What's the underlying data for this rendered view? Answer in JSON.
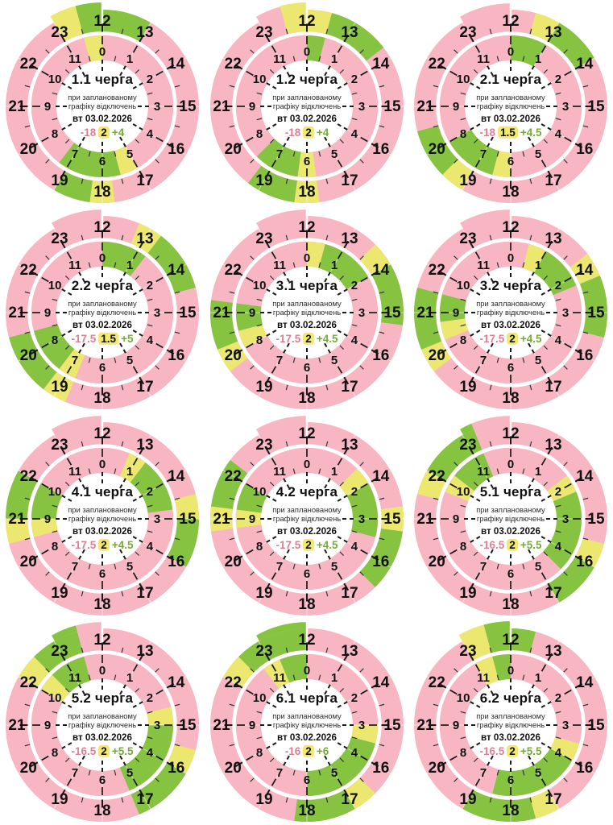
{
  "chart_data": {
    "type": "radial-clock-schedule",
    "description_line1": "при запланованому",
    "description_line2": "графіку відключень",
    "date": "вт 03.02.2026",
    "inner_ring_hour_labels": [
      "0",
      "1",
      "2",
      "3",
      "4",
      "5",
      "6",
      "7",
      "8",
      "9",
      "10",
      "11"
    ],
    "outer_ring_hour_labels": [
      "12",
      "13",
      "14",
      "15",
      "16",
      "17",
      "18",
      "19",
      "20",
      "21",
      "22",
      "23"
    ],
    "colors": {
      "off": "#f8b6c3",
      "maybe": "#ece86f",
      "on": "#85c341",
      "number_off": "#df7f97",
      "number_maybe_bg": "#f2e96d",
      "number_maybe_text": "#111111",
      "number_on": "#78a83c",
      "label": "#111111",
      "tick": "#1a1a1a"
    },
    "charts": [
      {
        "title": "1.1 черга",
        "off": "-18",
        "maybe": "2",
        "on": "+4",
        "segments": [
          {
            "from": 5,
            "to": 5.5,
            "state": "maybe"
          },
          {
            "from": 5.5,
            "to": 7.25,
            "state": "on"
          },
          {
            "from": 11.5,
            "to": 12,
            "state": "maybe"
          },
          {
            "from": 12,
            "to": 13,
            "state": "on"
          },
          {
            "from": 17.75,
            "to": 18.25,
            "state": "maybe"
          },
          {
            "from": 18.25,
            "to": 19,
            "state": "on"
          },
          {
            "from": 23,
            "to": 23.5,
            "state": "maybe"
          },
          {
            "from": 23.5,
            "to": 24,
            "state": "on"
          }
        ]
      },
      {
        "title": "1.2 черга",
        "off": "-18",
        "maybe": "2",
        "on": "+4",
        "segments": [
          {
            "from": 0,
            "to": 0.5,
            "state": "on"
          },
          {
            "from": 5.75,
            "to": 6.25,
            "state": "maybe"
          },
          {
            "from": 6.25,
            "to": 7.5,
            "state": "on"
          },
          {
            "from": 12,
            "to": 12.5,
            "state": "maybe"
          },
          {
            "from": 12.5,
            "to": 13.75,
            "state": "on"
          },
          {
            "from": 17.75,
            "to": 18.25,
            "state": "maybe"
          },
          {
            "from": 18.25,
            "to": 19.25,
            "state": "on"
          },
          {
            "from": 23.5,
            "to": 24,
            "state": "maybe"
          }
        ]
      },
      {
        "title": "2.1 черга",
        "off": "-18",
        "maybe": "1.5",
        "on": "+4.5",
        "segments": [
          {
            "from": 0,
            "to": 1,
            "state": "on"
          },
          {
            "from": 6,
            "to": 6.5,
            "state": "maybe"
          },
          {
            "from": 6.5,
            "to": 8,
            "state": "on"
          },
          {
            "from": 12.5,
            "to": 13,
            "state": "maybe"
          },
          {
            "from": 13,
            "to": 14,
            "state": "on"
          },
          {
            "from": 19,
            "to": 19.5,
            "state": "maybe"
          },
          {
            "from": 19.5,
            "to": 20.5,
            "state": "on"
          }
        ]
      },
      {
        "title": "2.2 черга",
        "off": "-17.5",
        "maybe": "1.5",
        "on": "+5",
        "segments": [
          {
            "from": 0,
            "to": 1.25,
            "state": "on"
          },
          {
            "from": 6.75,
            "to": 7.25,
            "state": "maybe"
          },
          {
            "from": 7.25,
            "to": 8.5,
            "state": "on"
          },
          {
            "from": 12.75,
            "to": 13.25,
            "state": "maybe"
          },
          {
            "from": 13.25,
            "to": 14.5,
            "state": "on"
          },
          {
            "from": 18.75,
            "to": 19.25,
            "state": "maybe"
          },
          {
            "from": 19.25,
            "to": 20.5,
            "state": "on"
          }
        ]
      },
      {
        "title": "3.1 черга",
        "off": "-17.5",
        "maybe": "2",
        "on": "+4.5",
        "segments": [
          {
            "from": 0,
            "to": 0.5,
            "state": "maybe"
          },
          {
            "from": 0.5,
            "to": 2,
            "state": "on"
          },
          {
            "from": 8,
            "to": 8.5,
            "state": "maybe"
          },
          {
            "from": 8.5,
            "to": 9.25,
            "state": "on"
          },
          {
            "from": 13.5,
            "to": 14,
            "state": "maybe"
          },
          {
            "from": 14,
            "to": 15.25,
            "state": "on"
          },
          {
            "from": 19.75,
            "to": 20.25,
            "state": "maybe"
          },
          {
            "from": 20.25,
            "to": 21.25,
            "state": "on"
          }
        ]
      },
      {
        "title": "3.2 черга",
        "off": "-17.5",
        "maybe": "2",
        "on": "+4.5",
        "segments": [
          {
            "from": 0.5,
            "to": 1,
            "state": "maybe"
          },
          {
            "from": 1,
            "to": 2.25,
            "state": "on"
          },
          {
            "from": 8.25,
            "to": 8.75,
            "state": "maybe"
          },
          {
            "from": 8.75,
            "to": 9.5,
            "state": "on"
          },
          {
            "from": 13.75,
            "to": 14.25,
            "state": "maybe"
          },
          {
            "from": 14.25,
            "to": 15.5,
            "state": "on"
          },
          {
            "from": 19.75,
            "to": 20.25,
            "state": "maybe"
          },
          {
            "from": 20.25,
            "to": 21.5,
            "state": "on"
          }
        ]
      },
      {
        "title": "4.1 черга",
        "off": "-17.5",
        "maybe": "2",
        "on": "+4.5",
        "segments": [
          {
            "from": 0.75,
            "to": 1.25,
            "state": "maybe"
          },
          {
            "from": 1.25,
            "to": 2.75,
            "state": "on"
          },
          {
            "from": 8.5,
            "to": 9,
            "state": "maybe"
          },
          {
            "from": 9,
            "to": 10,
            "state": "on"
          },
          {
            "from": 14.5,
            "to": 15,
            "state": "maybe"
          },
          {
            "from": 15,
            "to": 16,
            "state": "on"
          },
          {
            "from": 20.5,
            "to": 21,
            "state": "maybe"
          },
          {
            "from": 21,
            "to": 22,
            "state": "on"
          }
        ]
      },
      {
        "title": "4.2 черга",
        "off": "-17.5",
        "maybe": "2",
        "on": "+4.5",
        "segments": [
          {
            "from": 1.5,
            "to": 2,
            "state": "maybe"
          },
          {
            "from": 2,
            "to": 3.5,
            "state": "on"
          },
          {
            "from": 8.75,
            "to": 9.25,
            "state": "maybe"
          },
          {
            "from": 9.25,
            "to": 10,
            "state": "on"
          },
          {
            "from": 14.75,
            "to": 15.25,
            "state": "maybe"
          },
          {
            "from": 15.25,
            "to": 16.5,
            "state": "on"
          },
          {
            "from": 20.75,
            "to": 21.25,
            "state": "maybe"
          },
          {
            "from": 21.25,
            "to": 22.25,
            "state": "on"
          }
        ]
      },
      {
        "title": "5.1 черга",
        "off": "-16.5",
        "maybe": "2",
        "on": "+5.5",
        "segments": [
          {
            "from": 1.75,
            "to": 2.25,
            "state": "maybe"
          },
          {
            "from": 2.25,
            "to": 4.5,
            "state": "on"
          },
          {
            "from": 9.75,
            "to": 10.25,
            "state": "maybe"
          },
          {
            "from": 10.25,
            "to": 11.25,
            "state": "on"
          },
          {
            "from": 15.5,
            "to": 16,
            "state": "maybe"
          },
          {
            "from": 16,
            "to": 17,
            "state": "on"
          },
          {
            "from": 21.5,
            "to": 22,
            "state": "maybe"
          },
          {
            "from": 22,
            "to": 23.25,
            "state": "on"
          }
        ]
      },
      {
        "title": "5.2 черга",
        "off": "-16.5",
        "maybe": "2",
        "on": "+5.5",
        "segments": [
          {
            "from": 2.5,
            "to": 3,
            "state": "maybe"
          },
          {
            "from": 3,
            "to": 5.25,
            "state": "on"
          },
          {
            "from": 10,
            "to": 10.5,
            "state": "maybe"
          },
          {
            "from": 10.5,
            "to": 11.5,
            "state": "on"
          },
          {
            "from": 15.5,
            "to": 16,
            "state": "maybe"
          },
          {
            "from": 16,
            "to": 17.25,
            "state": "on"
          },
          {
            "from": 22,
            "to": 22.5,
            "state": "maybe"
          },
          {
            "from": 22.5,
            "to": 23.5,
            "state": "on"
          }
        ]
      },
      {
        "title": "6.1 черга",
        "off": "-16",
        "maybe": "2",
        "on": "+6",
        "segments": [
          {
            "from": 3,
            "to": 3.5,
            "state": "maybe"
          },
          {
            "from": 3.5,
            "to": 6,
            "state": "on"
          },
          {
            "from": 10.75,
            "to": 11.25,
            "state": "maybe"
          },
          {
            "from": 11.25,
            "to": 12,
            "state": "on"
          },
          {
            "from": 16.5,
            "to": 17,
            "state": "maybe"
          },
          {
            "from": 17,
            "to": 18.25,
            "state": "on"
          },
          {
            "from": 22,
            "to": 22.5,
            "state": "maybe"
          },
          {
            "from": 22.5,
            "to": 24,
            "state": "on"
          }
        ]
      },
      {
        "title": "6.2 черга",
        "off": "-16.5",
        "maybe": "2",
        "on": "+5.5",
        "segments": [
          {
            "from": 3.5,
            "to": 4,
            "state": "maybe"
          },
          {
            "from": 4,
            "to": 6.5,
            "state": "on"
          },
          {
            "from": 11,
            "to": 11.5,
            "state": "maybe"
          },
          {
            "from": 11.5,
            "to": 12.5,
            "state": "on"
          },
          {
            "from": 17,
            "to": 17.5,
            "state": "maybe"
          },
          {
            "from": 17.5,
            "to": 19,
            "state": "on"
          },
          {
            "from": 23,
            "to": 23.5,
            "state": "maybe"
          },
          {
            "from": 23.5,
            "to": 24,
            "state": "on"
          }
        ]
      }
    ]
  }
}
